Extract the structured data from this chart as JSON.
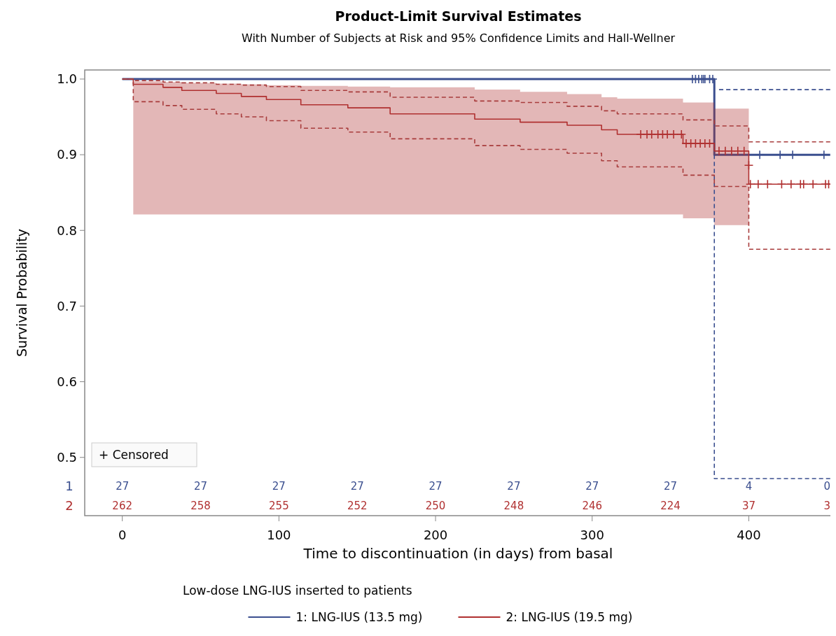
{
  "chart_data": {
    "type": "step",
    "title": "Product-Limit Survival Estimates",
    "subtitle": "With Number of Subjects at Risk and 95% Confidence Limits and Hall-Wellner",
    "xlabel": "Time to discontinuation (in days) from basal",
    "ylabel": "Survival Probability",
    "legend_title": "Low-dose LNG-IUS inserted to patients",
    "legend": "bottom",
    "grid": false,
    "xlim": [
      -24,
      453
    ],
    "xticks": [
      0,
      100,
      200,
      300,
      400
    ],
    "ylim": [
      0.423,
      1.012
    ],
    "yticks": [
      0.5,
      0.6,
      0.7,
      0.8,
      0.9,
      {
        "value": 1,
        "label": "1.0"
      }
    ],
    "series": [
      {
        "name": "1: LNG-IUS (13.5 mg)",
        "color": "#3b4f8f",
        "x": [
          0,
          378,
          452
        ],
        "values": [
          1,
          0.9,
          0.9
        ]
      },
      {
        "name": "2: LNG-IUS (19.5 mg)",
        "color": "#b03030",
        "x": [
          0,
          7,
          26,
          38,
          60,
          76,
          92,
          114,
          144,
          171,
          225,
          254,
          284,
          306,
          316,
          358,
          378,
          400,
          452
        ],
        "values": [
          1,
          0.993,
          0.989,
          0.985,
          0.981,
          0.977,
          0.973,
          0.966,
          0.962,
          0.954,
          0.947,
          0.943,
          0.939,
          0.933,
          0.927,
          0.915,
          0.905,
          0.861,
          0.861
        ],
        "upper": [
          null,
          0.997,
          0.996,
          0.995,
          0.994,
          0.993,
          0.992,
          0.991,
          0.99,
          0.989,
          0.986,
          0.983,
          0.98,
          0.976,
          0.974,
          0.969,
          0.961,
          0.955,
          null
        ],
        "lower": [
          null,
          0.821,
          0.821,
          0.821,
          0.821,
          0.821,
          0.821,
          0.821,
          0.821,
          0.821,
          0.821,
          0.821,
          0.821,
          0.821,
          0.821,
          0.816,
          0.807,
          0.807,
          null
        ]
      },
      {
        "color": "#3b4f8f",
        "line_style": "dashed",
        "x": [
          381,
          452
        ],
        "values": [
          0.986,
          0.986
        ]
      },
      {
        "color": "#3b4f8f",
        "line_style": "dashed",
        "x": [
          378,
          378,
          452
        ],
        "values": [
          0.9,
          0.472,
          0.472
        ]
      },
      {
        "color": "#a83c3c",
        "line_style": "dashed",
        "x": [
          0,
          7,
          26,
          38,
          60,
          76,
          92,
          114,
          144,
          171,
          225,
          254,
          284,
          306,
          316,
          358,
          378,
          400,
          452
        ],
        "values": [
          1,
          0.998,
          0.996,
          0.995,
          0.993,
          0.992,
          0.99,
          0.985,
          0.983,
          0.976,
          0.971,
          0.969,
          0.964,
          0.958,
          0.954,
          0.946,
          0.938,
          0.917,
          0.917
        ]
      },
      {
        "color": "#a83c3c",
        "line_style": "dashed",
        "x": [
          0,
          7,
          26,
          38,
          60,
          76,
          92,
          114,
          144,
          171,
          225,
          254,
          284,
          306,
          316,
          358,
          378,
          400,
          452
        ],
        "values": [
          1,
          0.97,
          0.965,
          0.96,
          0.954,
          0.95,
          0.945,
          0.935,
          0.93,
          0.921,
          0.912,
          0.907,
          0.902,
          0.892,
          0.884,
          0.873,
          0.858,
          0.775,
          0.775
        ]
      },
      {
        "type": "scatter",
        "marker": "cross",
        "color": "#3b4f8f",
        "x": [
          364,
          366,
          368,
          370,
          371,
          372,
          375,
          377,
          407,
          420,
          428,
          448
        ],
        "values": [
          1,
          1,
          1,
          1,
          1,
          1,
          1,
          1,
          0.9,
          0.9,
          0.9,
          0.9
        ]
      },
      {
        "type": "scatter",
        "marker": "cross",
        "color": "#b03030",
        "x": [
          331,
          335,
          338,
          342,
          345,
          348,
          352,
          357,
          360,
          363,
          366,
          369,
          372,
          375,
          381,
          385,
          389,
          393,
          397,
          400,
          401,
          406,
          412,
          421,
          427,
          433,
          435,
          441,
          449,
          451
        ],
        "values": [
          0.927,
          0.927,
          0.927,
          0.927,
          0.927,
          0.927,
          0.927,
          0.927,
          0.915,
          0.915,
          0.915,
          0.915,
          0.915,
          0.915,
          0.905,
          0.905,
          0.905,
          0.905,
          0.905,
          0.886,
          0.861,
          0.861,
          0.861,
          0.861,
          0.861,
          0.861,
          0.861,
          0.861,
          0.861,
          0.861
        ]
      }
    ],
    "annotations": [
      "+ Censored",
      "1",
      "27",
      "27",
      "27",
      "27",
      "27",
      "27",
      "27",
      "27",
      "4",
      "0",
      "2",
      "262",
      "258",
      "255",
      "252",
      "250",
      "248",
      "246",
      "224",
      "37",
      "3"
    ]
  }
}
